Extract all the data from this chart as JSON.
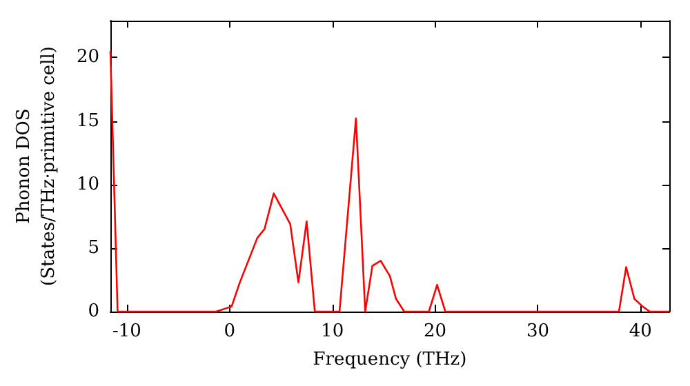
{
  "chart_data": {
    "type": "line",
    "xlabel": "Frequency (THz)",
    "ylabel": "Phonon DOS\n(States/THz·primitive cell)",
    "x": [
      -11.6,
      -10.9,
      -1.3,
      0.2,
      1.0,
      2.7,
      3.4,
      4.3,
      5.9,
      6.7,
      7.5,
      8.3,
      10.7,
      12.3,
      13.2,
      13.9,
      14.7,
      15.6,
      16.2,
      17.0,
      19.4,
      20.2,
      21.0,
      37.9,
      38.6,
      39.4,
      40.2,
      40.9,
      42.8
    ],
    "series": [
      {
        "color": "#ff0000",
        "values": [
          20.5,
          0,
          0,
          0.4,
          2.3,
          5.8,
          6.5,
          9.3,
          6.9,
          2.3,
          7.1,
          0,
          0,
          15.2,
          0,
          3.6,
          4.0,
          2.8,
          1.0,
          0,
          0,
          2.1,
          0,
          0,
          3.5,
          1.0,
          0.4,
          0,
          0
        ]
      }
    ],
    "xlim": [
      -11.6,
      42.8
    ],
    "xticks": [
      -10,
      0,
      10,
      20,
      30,
      40
    ],
    "ylim": [
      0,
      22.9
    ],
    "yticks": [
      0,
      5,
      10,
      15,
      20
    ],
    "grid": false,
    "marker": "none",
    "line_style": "solid"
  }
}
